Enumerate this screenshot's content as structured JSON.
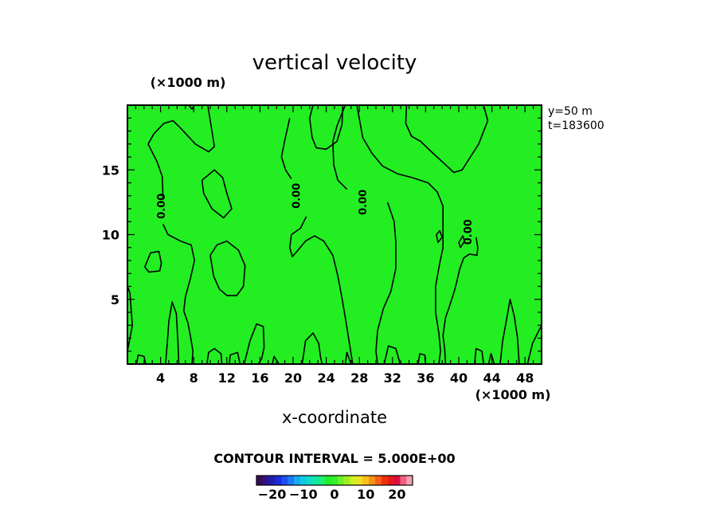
{
  "chart_data": {
    "type": "heatmap",
    "title": "vertical velocity",
    "xlabel": "x-coordinate",
    "x_unit": "(×1000 m)",
    "y_unit": "(×1000 m)",
    "xlim": [
      0,
      50
    ],
    "ylim": [
      0,
      20
    ],
    "x_ticks": [
      4,
      8,
      12,
      16,
      20,
      24,
      28,
      32,
      36,
      40,
      44,
      48
    ],
    "y_ticks": [
      5,
      10,
      15
    ],
    "info_lines": [
      "y=50 m",
      "t=183600"
    ],
    "contour_interval": "CONTOUR INTERVAL = 5.000E+00",
    "contour_label": "0.00",
    "contour_label_positions": [
      [
        4.2,
        12.2
      ],
      [
        20.5,
        13
      ],
      [
        28.5,
        12.5
      ],
      [
        41.2,
        10.2
      ]
    ],
    "colorbar": {
      "min": -25,
      "max": 25,
      "tick_values": [
        -20,
        -10,
        0,
        10,
        20
      ],
      "tick_labels": [
        "−20",
        "−10",
        "0",
        "10",
        "20"
      ],
      "colors": [
        "#3a0a5a",
        "#2c1488",
        "#1e1eb0",
        "#1a2cd8",
        "#1a50f0",
        "#1c78f8",
        "#18a8f0",
        "#10c8e8",
        "#10dcc8",
        "#10e8a0",
        "#20f070",
        "#22ee22",
        "#30f030",
        "#70f020",
        "#a0f020",
        "#d0f020",
        "#f0e020",
        "#f8c018",
        "#f89018",
        "#f86018",
        "#f03010",
        "#e81818",
        "#d81040",
        "#f06080",
        "#f8a0b0"
      ]
    },
    "field_color": "#22ee22",
    "contours": [
      [
        [
          0,
          1.0
        ],
        [
          0.6,
          3.0
        ],
        [
          0.3,
          5.5
        ],
        [
          0,
          6.0
        ]
      ],
      [
        [
          2.5,
          17.0
        ],
        [
          3.2,
          17.8
        ],
        [
          4.4,
          18.6
        ],
        [
          5.5,
          18.8
        ],
        [
          6.3,
          18.3
        ],
        [
          8.2,
          17.0
        ],
        [
          9.8,
          16.4
        ],
        [
          10.5,
          16.8
        ],
        [
          10.0,
          18.8
        ],
        [
          9.7,
          20.0
        ]
      ],
      [
        [
          2.5,
          17.0
        ],
        [
          3.6,
          15.6
        ],
        [
          4.2,
          14.5
        ],
        [
          4.3,
          12.8
        ]
      ],
      [
        [
          4.3,
          10.8
        ],
        [
          4.9,
          10.0
        ],
        [
          6.4,
          9.5
        ],
        [
          7.7,
          9.2
        ],
        [
          8.1,
          8.0
        ],
        [
          7.6,
          6.6
        ],
        [
          7.0,
          5.2
        ],
        [
          6.8,
          4.1
        ],
        [
          7.3,
          3.2
        ],
        [
          7.6,
          2.2
        ],
        [
          7.9,
          1.0
        ],
        [
          7.8,
          0
        ]
      ],
      [
        [
          9.0,
          14.2
        ],
        [
          10.5,
          15.0
        ],
        [
          11.5,
          14.4
        ],
        [
          12.0,
          13.2
        ],
        [
          12.6,
          12.0
        ],
        [
          11.6,
          11.3
        ],
        [
          10.2,
          12.0
        ],
        [
          9.2,
          13.2
        ],
        [
          9.0,
          14.2
        ]
      ],
      [
        [
          2.1,
          7.5
        ],
        [
          2.8,
          8.6
        ],
        [
          3.8,
          8.7
        ],
        [
          4.1,
          7.8
        ],
        [
          3.9,
          7.2
        ],
        [
          2.6,
          7.1
        ],
        [
          2.1,
          7.5
        ]
      ],
      [
        [
          10.0,
          8.4
        ],
        [
          10.8,
          9.2
        ],
        [
          12.0,
          9.5
        ],
        [
          13.4,
          8.8
        ],
        [
          14.2,
          7.6
        ],
        [
          14.0,
          6.0
        ],
        [
          13.2,
          5.3
        ],
        [
          12.0,
          5.3
        ],
        [
          11.1,
          5.8
        ],
        [
          10.4,
          6.8
        ],
        [
          10.0,
          8.4
        ]
      ],
      [
        [
          19.6,
          19.0
        ],
        [
          19.0,
          17.3
        ],
        [
          18.6,
          16.0
        ],
        [
          19.1,
          15.0
        ],
        [
          19.8,
          14.3
        ]
      ],
      [
        [
          21.6,
          11.4
        ],
        [
          20.9,
          10.5
        ],
        [
          19.8,
          10.0
        ],
        [
          19.6,
          9.0
        ],
        [
          19.9,
          8.3
        ],
        [
          20.6,
          8.8
        ],
        [
          21.5,
          9.5
        ],
        [
          22.6,
          9.9
        ],
        [
          23.7,
          9.5
        ],
        [
          24.8,
          8.4
        ],
        [
          25.4,
          6.8
        ],
        [
          25.9,
          5.1
        ],
        [
          26.4,
          3.2
        ],
        [
          26.8,
          1.6
        ],
        [
          27.2,
          0
        ]
      ],
      [
        [
          26.0,
          20.0
        ],
        [
          25.9,
          18.5
        ],
        [
          25.3,
          17.2
        ],
        [
          24.0,
          16.6
        ],
        [
          22.8,
          16.7
        ],
        [
          22.3,
          17.5
        ],
        [
          22.0,
          19.0
        ],
        [
          22.4,
          20.0
        ]
      ],
      [
        [
          26.5,
          13.5
        ],
        [
          25.4,
          14.2
        ],
        [
          24.9,
          15.4
        ],
        [
          24.8,
          17.2
        ],
        [
          25.3,
          18.4
        ],
        [
          26.3,
          20.0
        ]
      ],
      [
        [
          31.4,
          12.5
        ],
        [
          32.2,
          11.0
        ],
        [
          32.4,
          9.4
        ],
        [
          32.4,
          7.4
        ],
        [
          31.8,
          5.6
        ],
        [
          30.9,
          4.3
        ],
        [
          30.2,
          2.6
        ],
        [
          30.0,
          1.0
        ],
        [
          30.2,
          0
        ]
      ],
      [
        [
          33.7,
          20.0
        ],
        [
          33.6,
          18.6
        ],
        [
          34.3,
          17.6
        ],
        [
          35.4,
          17.2
        ],
        [
          36.7,
          16.4
        ],
        [
          38.4,
          15.4
        ],
        [
          39.4,
          14.8
        ],
        [
          40.4,
          15.0
        ],
        [
          41.4,
          16.0
        ],
        [
          42.4,
          17.0
        ],
        [
          43.5,
          18.8
        ],
        [
          43.0,
          20.0
        ]
      ],
      [
        [
          27.7,
          20.0
        ],
        [
          28.4,
          17.5
        ],
        [
          29.5,
          16.3
        ],
        [
          30.8,
          15.3
        ],
        [
          32.6,
          14.7
        ],
        [
          34.4,
          14.4
        ],
        [
          36.3,
          14.0
        ],
        [
          37.4,
          13.3
        ],
        [
          38.1,
          12.2
        ],
        [
          38.1,
          10.7
        ],
        [
          38.1,
          9.0
        ],
        [
          37.7,
          7.8
        ],
        [
          37.2,
          6.0
        ],
        [
          37.2,
          4.0
        ],
        [
          37.6,
          2.4
        ],
        [
          37.8,
          1.0
        ],
        [
          37.6,
          0
        ]
      ],
      [
        [
          37.3,
          10.0
        ],
        [
          37.5,
          9.4
        ],
        [
          38.0,
          9.8
        ],
        [
          37.7,
          10.3
        ],
        [
          37.3,
          10.0
        ]
      ],
      [
        [
          40.2,
          9.0
        ],
        [
          40.7,
          9.5
        ],
        [
          40.5,
          9.9
        ],
        [
          40.0,
          9.4
        ],
        [
          40.2,
          9.0
        ]
      ],
      [
        [
          42.1,
          9.8
        ],
        [
          42.3,
          9.0
        ],
        [
          42.2,
          8.4
        ],
        [
          41.3,
          8.5
        ],
        [
          40.6,
          8.2
        ],
        [
          40.1,
          7.3
        ],
        [
          39.7,
          6.2
        ],
        [
          39.4,
          5.5
        ],
        [
          38.8,
          4.3
        ],
        [
          38.4,
          3.6
        ],
        [
          38.1,
          2.2
        ],
        [
          38.3,
          1.2
        ],
        [
          38.4,
          0
        ]
      ],
      [
        [
          14.1,
          0
        ],
        [
          14.8,
          1.8
        ],
        [
          15.6,
          3.1
        ],
        [
          16.4,
          2.9
        ],
        [
          16.5,
          1.3
        ],
        [
          16.2,
          0.4
        ],
        [
          15.8,
          0
        ]
      ],
      [
        [
          21.1,
          0
        ],
        [
          21.5,
          1.8
        ],
        [
          22.4,
          2.4
        ],
        [
          23.1,
          1.6
        ],
        [
          23.3,
          0.6
        ],
        [
          23.5,
          0
        ]
      ],
      [
        [
          31.0,
          0
        ],
        [
          31.5,
          1.4
        ],
        [
          32.4,
          1.2
        ],
        [
          32.8,
          0.3
        ],
        [
          32.9,
          0
        ]
      ],
      [
        [
          45.0,
          0
        ],
        [
          45.3,
          1.8
        ],
        [
          45.7,
          3.2
        ],
        [
          46.2,
          5.0
        ],
        [
          46.7,
          3.7
        ],
        [
          47.1,
          2.0
        ],
        [
          47.3,
          0
        ]
      ],
      [
        [
          48.3,
          0
        ],
        [
          48.9,
          1.6
        ],
        [
          50.0,
          3.0
        ]
      ],
      [
        [
          4.6,
          0
        ],
        [
          4.8,
          1.5
        ],
        [
          5.0,
          3.3
        ],
        [
          5.4,
          4.8
        ],
        [
          5.9,
          3.9
        ],
        [
          6.1,
          1.7
        ],
        [
          6.2,
          0
        ]
      ],
      [
        [
          9.6,
          0
        ],
        [
          9.8,
          0.9
        ],
        [
          10.5,
          1.2
        ],
        [
          11.3,
          0.8
        ],
        [
          11.4,
          0
        ]
      ],
      [
        [
          12.3,
          0
        ],
        [
          12.4,
          0.7
        ],
        [
          13.3,
          0.9
        ],
        [
          13.6,
          0
        ]
      ],
      [
        [
          1.1,
          0
        ],
        [
          1.3,
          0.7
        ],
        [
          2.0,
          0.6
        ],
        [
          2.2,
          0
        ]
      ],
      [
        [
          35.1,
          0
        ],
        [
          35.3,
          0.8
        ],
        [
          35.9,
          0.7
        ],
        [
          36.0,
          0
        ]
      ],
      [
        [
          41.9,
          0
        ],
        [
          42.1,
          1.2
        ],
        [
          42.8,
          1.0
        ],
        [
          43.0,
          0
        ]
      ],
      [
        [
          43.6,
          0
        ],
        [
          43.9,
          0.8
        ],
        [
          44.3,
          0
        ]
      ],
      [
        [
          7.4,
          20.0
        ],
        [
          7.8,
          19.7
        ],
        [
          8.1,
          20.0
        ]
      ],
      [
        [
          17.5,
          0
        ],
        [
          17.7,
          0.6
        ],
        [
          18.3,
          0
        ]
      ],
      [
        [
          26.3,
          0
        ],
        [
          26.5,
          0.9
        ],
        [
          27.0,
          0
        ]
      ]
    ]
  }
}
